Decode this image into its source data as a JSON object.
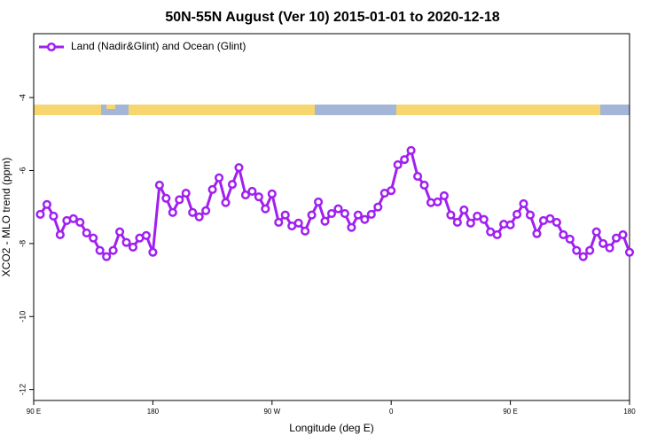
{
  "chart_data": {
    "type": "line",
    "title": "50N-55N August (Ver 10)   2015-01-01 to 2020-12-18",
    "x_label": "Longitude (deg E)",
    "y_label": "XCO2 - MLO trend (ppm)",
    "xlim": [
      90,
      540
    ],
    "ylim": [
      -12.3,
      -2.25
    ],
    "xticks": [
      {
        "value": 90,
        "label": "90 E"
      },
      {
        "value": 180,
        "label": "180"
      },
      {
        "value": 270,
        "label": "90 W"
      },
      {
        "value": 360,
        "label": "0"
      },
      {
        "value": 450,
        "label": "90 E"
      },
      {
        "value": 540,
        "label": "180"
      }
    ],
    "yticks": [
      -4,
      -6,
      -8,
      -10,
      -12
    ],
    "legend": "top-left",
    "x": [
      95,
      100,
      105,
      110,
      115,
      120,
      125,
      130,
      135,
      140,
      145,
      150,
      155,
      160,
      165,
      170,
      175,
      180,
      185,
      190,
      195,
      200,
      205,
      210,
      215,
      220,
      225,
      230,
      235,
      240,
      245,
      250,
      255,
      260,
      265,
      270,
      275,
      280,
      285,
      290,
      295,
      300,
      305,
      310,
      315,
      320,
      325,
      330,
      335,
      340,
      345,
      350,
      355,
      360,
      365,
      370,
      375,
      380,
      385,
      390,
      395,
      400,
      405,
      410,
      415,
      420,
      425,
      430,
      435,
      440,
      445,
      450,
      455,
      460,
      465,
      470,
      475,
      480,
      485,
      490,
      495,
      500,
      505,
      510,
      515,
      520,
      525,
      530,
      535,
      540
    ],
    "series": [
      {
        "name": "Land (Nadir&Glint) and Ocean (Glint)",
        "color": "#a020f0",
        "values": [
          -7.2,
          -6.93,
          -7.25,
          -7.76,
          -7.37,
          -7.32,
          -7.42,
          -7.71,
          -7.85,
          -8.19,
          -8.36,
          -8.19,
          -7.68,
          -7.97,
          -8.1,
          -7.85,
          -7.78,
          -8.24,
          -6.4,
          -6.76,
          -7.15,
          -6.8,
          -6.62,
          -7.15,
          -7.27,
          -7.1,
          -6.52,
          -6.2,
          -6.88,
          -6.38,
          -5.92,
          -6.67,
          -6.57,
          -6.72,
          -7.05,
          -6.64,
          -7.42,
          -7.22,
          -7.52,
          -7.44,
          -7.66,
          -7.22,
          -6.86,
          -7.39,
          -7.18,
          -7.05,
          -7.18,
          -7.56,
          -7.22,
          -7.34,
          -7.2,
          -7.0,
          -6.62,
          -6.55,
          -5.84,
          -5.7,
          -5.45,
          -6.16,
          -6.4,
          -6.88,
          -6.86,
          -6.69,
          -7.22,
          -7.42,
          -7.08,
          -7.44,
          -7.25,
          -7.34,
          -7.68,
          -7.76,
          -7.47,
          -7.49,
          -7.2,
          -6.91,
          -7.22,
          -7.73,
          -7.37,
          -7.32,
          -7.42,
          -7.76,
          -7.88,
          -8.19,
          -8.36,
          -8.19,
          -7.68,
          -8.0,
          -8.12,
          -7.85,
          -7.76,
          -8.24
        ]
      }
    ]
  }
}
